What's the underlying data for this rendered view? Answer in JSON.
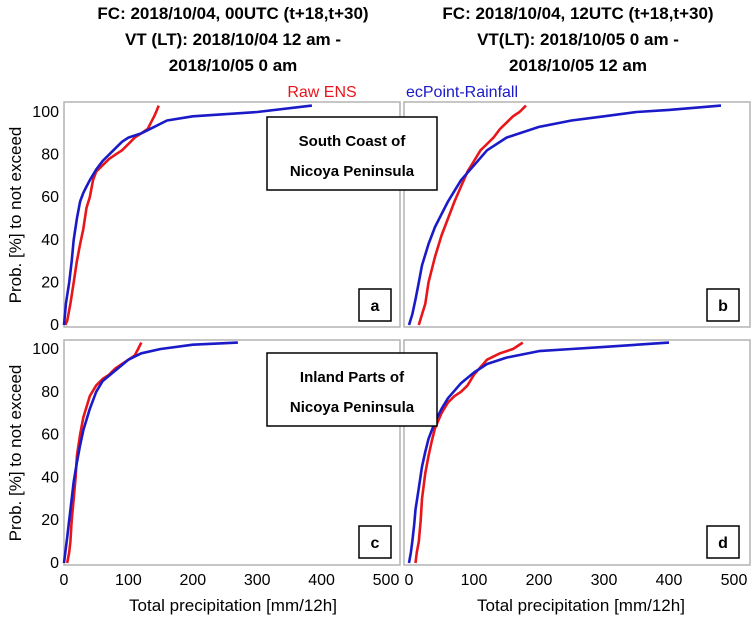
{
  "colors": {
    "raw_ens": "#e8161b",
    "ecpoint": "#1a1ac8",
    "frame": "#b3b3b3"
  },
  "headers": {
    "left": [
      "FC: 2018/10/04, 00UTC (t+18,t+30)",
      "VT (LT): 2018/10/04 12 am -",
      "2018/10/05 0 am"
    ],
    "right": [
      "FC: 2018/10/04, 12UTC (t+18,t+30)",
      "VT(LT): 2018/10/05 0 am -",
      "2018/10/05 12 am"
    ]
  },
  "legend": {
    "raw": "Raw ENS",
    "ecpoint": "ecPoint-Rainfall"
  },
  "region_labels": {
    "top": [
      "South Coast of",
      "Nicoya Peninsula"
    ],
    "bottom": [
      "Inland Parts of",
      "Nicoya Peninsula"
    ]
  },
  "ylabel": "Prob. [%] to not exceed",
  "xlabel": "Total precipitation [mm/12h]",
  "chart_data": [
    {
      "type": "line",
      "panel": "a",
      "xlabel": "Total precipitation [mm/12h]",
      "ylabel": "Prob. [%] to not exceed",
      "xlim": [
        0,
        500
      ],
      "ylim": [
        0,
        100
      ],
      "xticks": [
        0,
        100,
        200,
        300,
        400,
        500
      ],
      "yticks": [
        0,
        20,
        40,
        60,
        80,
        100
      ],
      "series": [
        {
          "name": "Raw ENS",
          "x": [
            2,
            5,
            10,
            15,
            20,
            25,
            30,
            35,
            40,
            45,
            50,
            60,
            70,
            80,
            90,
            100,
            110,
            120,
            130,
            135,
            140,
            143,
            147
          ],
          "y": [
            0,
            2,
            10,
            20,
            30,
            38,
            45,
            55,
            60,
            68,
            72,
            75,
            78,
            80,
            82,
            85,
            88,
            90,
            92,
            95,
            98,
            100,
            103
          ]
        },
        {
          "name": "ecPoint-Rainfall",
          "x": [
            0,
            3,
            8,
            12,
            15,
            20,
            25,
            30,
            35,
            40,
            50,
            60,
            70,
            80,
            90,
            100,
            120,
            140,
            160,
            200,
            300,
            385
          ],
          "y": [
            0,
            10,
            20,
            30,
            40,
            50,
            58,
            62,
            65,
            68,
            73,
            77,
            80,
            83,
            86,
            88,
            90,
            93,
            96,
            98,
            100,
            103
          ]
        }
      ]
    },
    {
      "type": "line",
      "panel": "b",
      "xlabel": "Total precipitation [mm/12h]",
      "ylabel": "",
      "xlim": [
        0,
        500
      ],
      "ylim": [
        0,
        100
      ],
      "xticks": [
        0,
        100,
        200,
        300,
        400,
        500
      ],
      "yticks": [],
      "series": [
        {
          "name": "Raw ENS",
          "x": [
            15,
            20,
            25,
            30,
            40,
            50,
            60,
            70,
            80,
            90,
            100,
            110,
            120,
            130,
            140,
            150,
            160,
            170,
            180
          ],
          "y": [
            0,
            5,
            10,
            20,
            32,
            42,
            50,
            58,
            65,
            72,
            77,
            82,
            85,
            88,
            92,
            95,
            98,
            100,
            103
          ]
        },
        {
          "name": "ecPoint-Rainfall",
          "x": [
            0,
            5,
            10,
            15,
            20,
            30,
            40,
            50,
            60,
            70,
            80,
            100,
            120,
            150,
            200,
            250,
            300,
            350,
            400,
            480
          ],
          "y": [
            0,
            5,
            12,
            20,
            28,
            38,
            46,
            52,
            58,
            63,
            68,
            75,
            82,
            88,
            93,
            96,
            98,
            100,
            101,
            103
          ]
        }
      ]
    },
    {
      "type": "line",
      "panel": "c",
      "xlabel": "Total precipitation [mm/12h]",
      "ylabel": "Prob. [%] to not exceed",
      "xlim": [
        0,
        500
      ],
      "ylim": [
        0,
        100
      ],
      "xticks": [
        0,
        100,
        200,
        300,
        400,
        500
      ],
      "yticks": [
        0,
        20,
        40,
        60,
        80,
        100
      ],
      "series": [
        {
          "name": "Raw ENS",
          "x": [
            5,
            8,
            10,
            12,
            15,
            18,
            20,
            25,
            30,
            40,
            50,
            60,
            70,
            80,
            100,
            110,
            115,
            120
          ],
          "y": [
            0,
            5,
            10,
            20,
            30,
            40,
            50,
            60,
            68,
            78,
            83,
            86,
            88,
            91,
            95,
            97,
            100,
            103
          ]
        },
        {
          "name": "ecPoint-Rainfall",
          "x": [
            0,
            2,
            5,
            8,
            12,
            15,
            20,
            25,
            30,
            40,
            50,
            60,
            80,
            100,
            120,
            150,
            200,
            270
          ],
          "y": [
            0,
            5,
            12,
            20,
            30,
            38,
            47,
            55,
            62,
            72,
            80,
            85,
            90,
            95,
            98,
            100,
            102,
            103
          ]
        }
      ]
    },
    {
      "type": "line",
      "panel": "d",
      "xlabel": "Total precipitation [mm/12h]",
      "ylabel": "",
      "xlim": [
        0,
        500
      ],
      "ylim": [
        0,
        100
      ],
      "xticks": [
        0,
        100,
        200,
        300,
        400,
        500
      ],
      "yticks": [],
      "series": [
        {
          "name": "Raw ENS",
          "x": [
            10,
            12,
            15,
            18,
            20,
            25,
            30,
            35,
            40,
            50,
            60,
            70,
            80,
            90,
            100,
            120,
            140,
            160,
            175
          ],
          "y": [
            0,
            5,
            10,
            20,
            30,
            42,
            50,
            57,
            63,
            70,
            75,
            78,
            80,
            83,
            88,
            95,
            98,
            100,
            103
          ]
        },
        {
          "name": "ecPoint-Rainfall",
          "x": [
            0,
            3,
            5,
            8,
            10,
            15,
            20,
            25,
            30,
            40,
            50,
            60,
            80,
            100,
            120,
            150,
            200,
            250,
            300,
            400
          ],
          "y": [
            0,
            5,
            10,
            18,
            25,
            35,
            45,
            52,
            58,
            66,
            72,
            77,
            84,
            89,
            93,
            96,
            99,
            100,
            101,
            103
          ]
        }
      ]
    }
  ]
}
